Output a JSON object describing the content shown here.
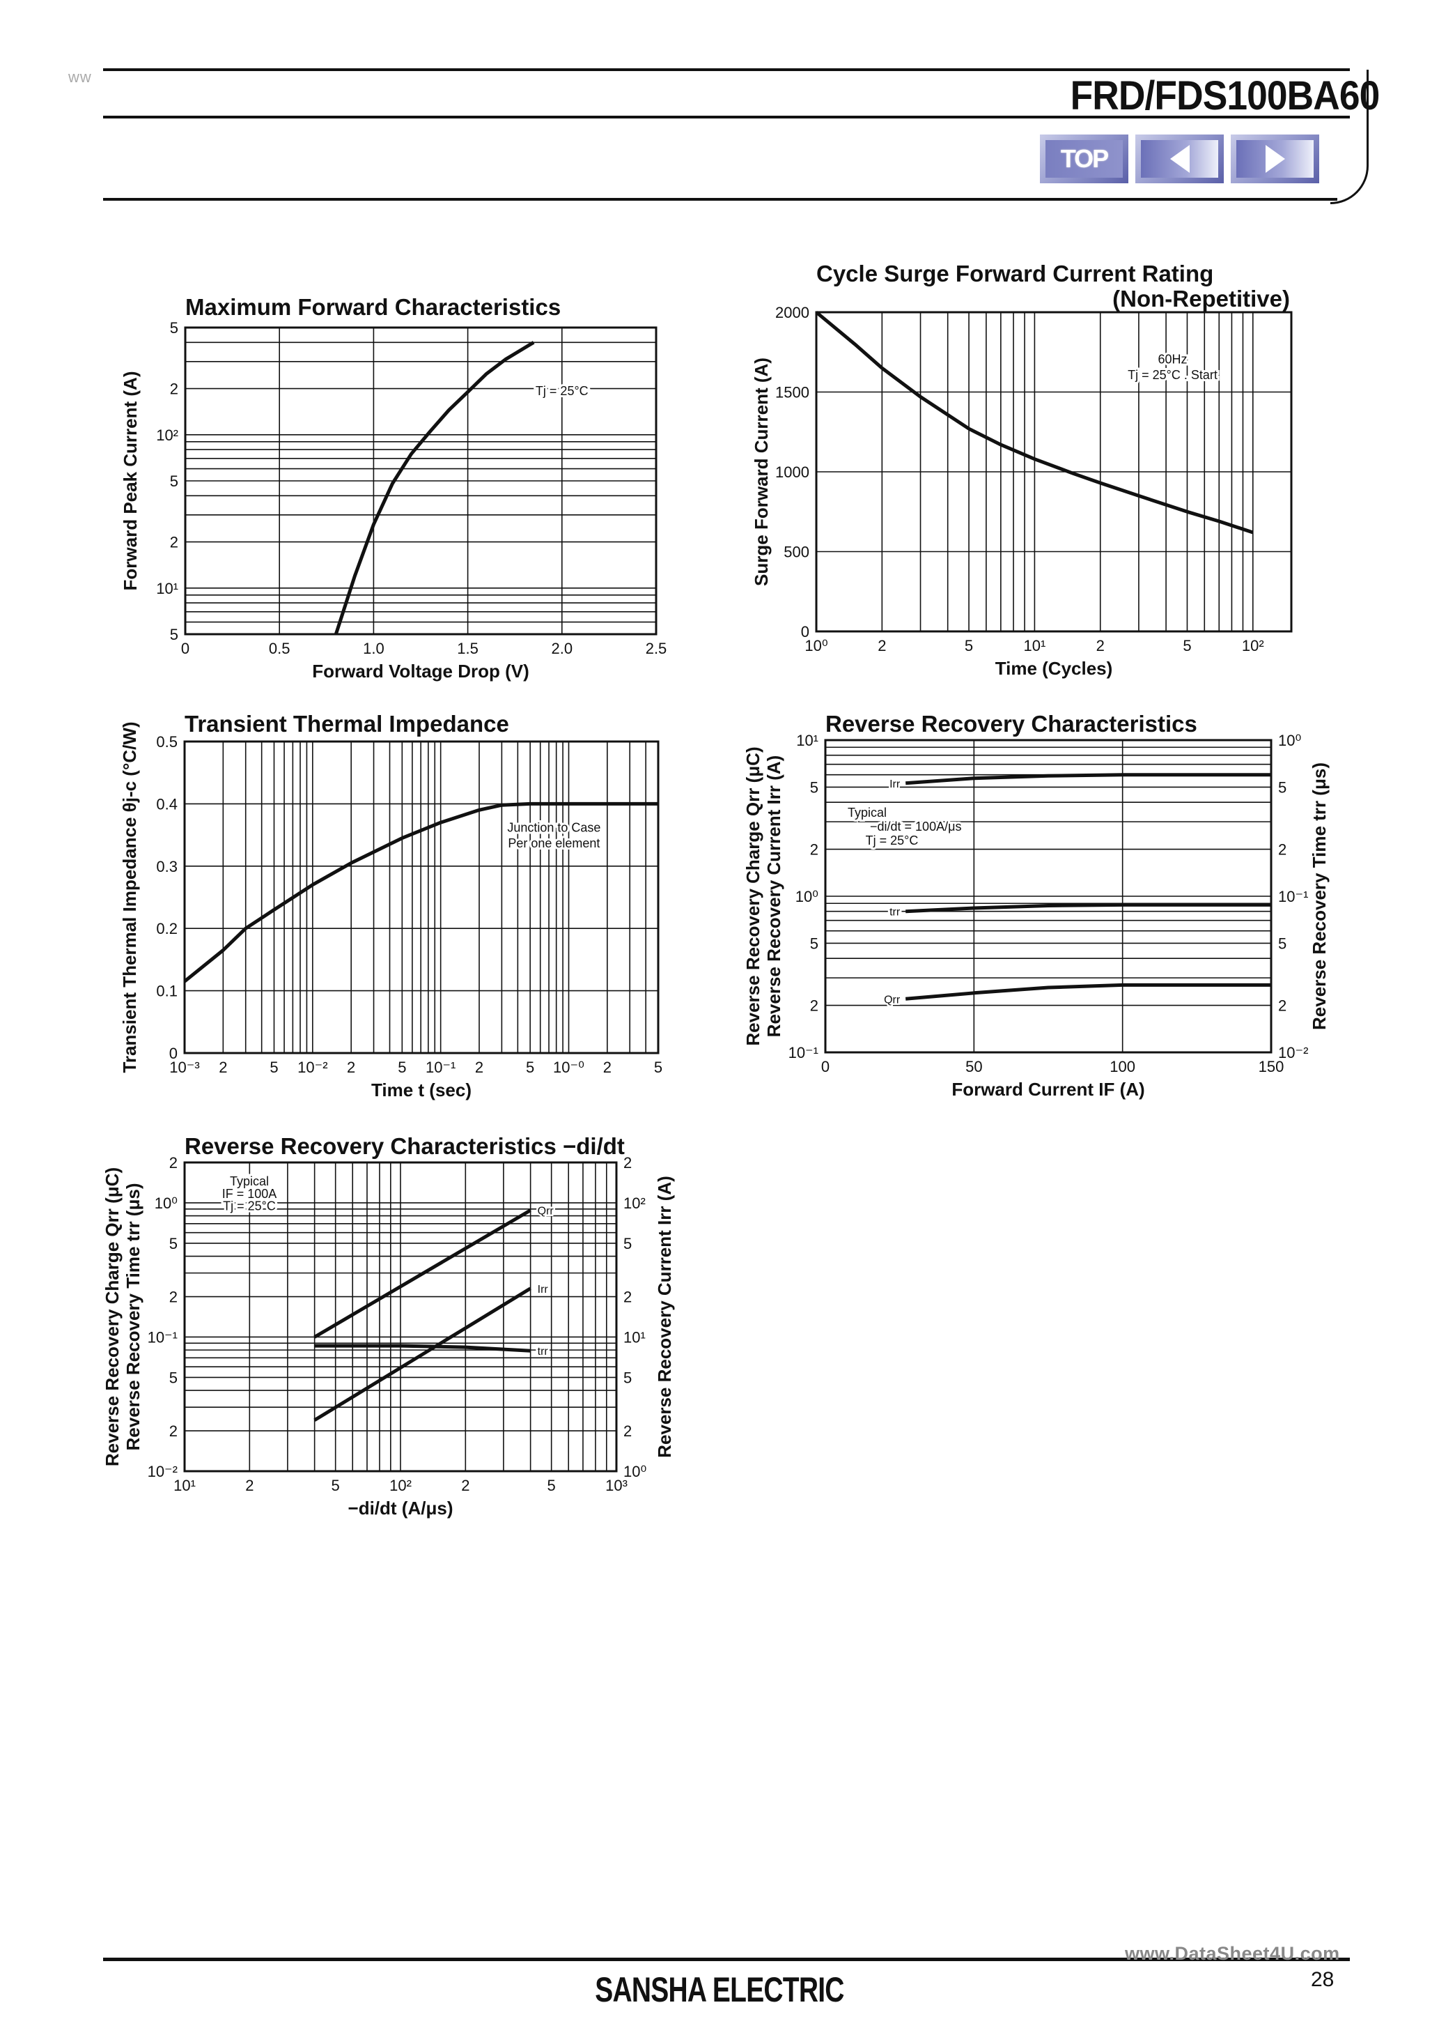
{
  "header": {
    "watermark_top": "ww",
    "part_number": "FRD/FDS100BA60",
    "nav": {
      "top_label": "TOP",
      "prev_label": "◀",
      "next_label": "▶"
    }
  },
  "footer": {
    "company": "SANSHA ELECTRIC",
    "page_number": "28",
    "watermark": "www.DataSheet4U.com"
  },
  "chart_data": [
    {
      "id": "max_forward",
      "type": "line",
      "title": "Maximum Forward Characteristics",
      "xlabel": "Forward Voltage Drop (V)",
      "ylabel": "Forward Peak Current (A)",
      "xscale": "linear",
      "yscale": "log",
      "xlim": [
        0,
        2.5
      ],
      "ylim": [
        5,
        500
      ],
      "xticks": [
        "0",
        "0.5",
        "1.0",
        "1.5",
        "2.0",
        "2.5"
      ],
      "yticks": [
        {
          "v": 5,
          "label": "5"
        },
        {
          "v": 10,
          "label": "10¹"
        },
        {
          "v": 20,
          "label": "2"
        },
        {
          "v": 50,
          "label": "5"
        },
        {
          "v": 100,
          "label": "10²"
        },
        {
          "v": 200,
          "label": "2"
        },
        {
          "v": 500,
          "label": "5"
        }
      ],
      "grid": true,
      "annotations": [
        "Tj = 25°C"
      ],
      "series": [
        {
          "name": "Tj=25C",
          "x": [
            0.8,
            0.9,
            1.0,
            1.1,
            1.2,
            1.3,
            1.4,
            1.5,
            1.6,
            1.7,
            1.85
          ],
          "y": [
            5,
            12,
            26,
            48,
            75,
            105,
            145,
            190,
            250,
            310,
            400
          ]
        }
      ]
    },
    {
      "id": "cycle_surge",
      "type": "line",
      "title": "Cycle Surge Forward Current Rating",
      "subtitle": "(Non-Repetitive)",
      "xlabel": "Time (Cycles)",
      "ylabel": "Surge Forward Current (A)",
      "xscale": "log",
      "yscale": "linear",
      "xlim": [
        1,
        150
      ],
      "ylim": [
        0,
        2000
      ],
      "xticks": [
        {
          "v": 1,
          "label": "10⁰"
        },
        {
          "v": 2,
          "label": "2"
        },
        {
          "v": 5,
          "label": "5"
        },
        {
          "v": 10,
          "label": "10¹"
        },
        {
          "v": 20,
          "label": "2"
        },
        {
          "v": 50,
          "label": "5"
        },
        {
          "v": 100,
          "label": "10²"
        }
      ],
      "yticks": [
        "0",
        "500",
        "1000",
        "1500",
        "2000"
      ],
      "grid": true,
      "annotations": [
        "60Hz",
        "Tj = 25°C . Start"
      ],
      "series": [
        {
          "name": "60Hz",
          "x": [
            1,
            1.5,
            2,
            3,
            5,
            7,
            10,
            15,
            20,
            30,
            50,
            70,
            100
          ],
          "y": [
            2000,
            1800,
            1650,
            1470,
            1270,
            1170,
            1080,
            990,
            930,
            850,
            750,
            690,
            620
          ]
        }
      ]
    },
    {
      "id": "transient_thermal",
      "type": "line",
      "title": "Transient Thermal Impedance",
      "xlabel": "Time t (sec)",
      "ylabel": "Transient Thermal Impedance θj-c (°C/W)",
      "xscale": "log",
      "yscale": "linear",
      "xlim": [
        0.001,
        5
      ],
      "ylim": [
        0,
        0.5
      ],
      "xticks": [
        {
          "v": 0.001,
          "label": "10⁻³"
        },
        {
          "v": 0.002,
          "label": "2"
        },
        {
          "v": 0.005,
          "label": "5"
        },
        {
          "v": 0.01,
          "label": "10⁻²"
        },
        {
          "v": 0.02,
          "label": "2"
        },
        {
          "v": 0.05,
          "label": "5"
        },
        {
          "v": 0.1,
          "label": "10⁻¹"
        },
        {
          "v": 0.2,
          "label": "2"
        },
        {
          "v": 0.5,
          "label": "5"
        },
        {
          "v": 1,
          "label": "10⁻⁰"
        },
        {
          "v": 2,
          "label": "2"
        },
        {
          "v": 5,
          "label": "5"
        }
      ],
      "yticks": [
        "0",
        "0.1",
        "0.2",
        "0.3",
        "0.4",
        "0.5"
      ],
      "grid": true,
      "annotations": [
        "Junction to Case",
        "Per one element"
      ],
      "series": [
        {
          "name": "Junction to Case",
          "x": [
            0.001,
            0.002,
            0.003,
            0.005,
            0.01,
            0.02,
            0.05,
            0.1,
            0.2,
            0.3,
            0.5,
            1,
            2,
            5
          ],
          "y": [
            0.115,
            0.165,
            0.2,
            0.23,
            0.27,
            0.305,
            0.345,
            0.37,
            0.39,
            0.398,
            0.4,
            0.4,
            0.4,
            0.4
          ]
        }
      ]
    },
    {
      "id": "reverse_recovery_if",
      "type": "line",
      "title": "Reverse Recovery Characteristics",
      "xlabel": "Forward Current IF (A)",
      "ylabel": "Reverse Recovery Charge Qrr (μC) / Reverse Recovery Current Irr (A)",
      "ylabel_right": "Reverse Recovery Time trr (μs)",
      "xscale": "linear",
      "yscale": "log",
      "xlim": [
        0,
        150
      ],
      "ylim": [
        0.1,
        10
      ],
      "ylim_right": [
        0.01,
        1
      ],
      "xticks": [
        "0",
        "50",
        "100",
        "150"
      ],
      "yticks": [
        {
          "v": 0.1,
          "label": "10⁻¹"
        },
        {
          "v": 0.2,
          "label": "2"
        },
        {
          "v": 0.5,
          "label": "5"
        },
        {
          "v": 1,
          "label": "10⁰"
        },
        {
          "v": 2,
          "label": "2"
        },
        {
          "v": 5,
          "label": "5"
        },
        {
          "v": 10,
          "label": "10¹"
        }
      ],
      "yticks_right": [
        "10⁻²",
        "2",
        "5",
        "10⁻¹",
        "2",
        "5",
        "10⁰"
      ],
      "grid": true,
      "annotations": [
        "Typical",
        "−di/dt = 100A/μs",
        "Tj = 25°C"
      ],
      "series": [
        {
          "name": "Irr",
          "x": [
            27,
            50,
            75,
            100,
            150
          ],
          "y": [
            5.3,
            5.7,
            5.9,
            6.0,
            6.0
          ]
        },
        {
          "name": "trr",
          "x": [
            27,
            50,
            75,
            100,
            150
          ],
          "y": [
            0.8,
            0.84,
            0.87,
            0.88,
            0.88
          ]
        },
        {
          "name": "Qrr",
          "x": [
            27,
            50,
            75,
            100,
            150
          ],
          "y": [
            0.22,
            0.24,
            0.26,
            0.27,
            0.27
          ]
        }
      ]
    },
    {
      "id": "reverse_recovery_didt",
      "type": "line",
      "title": "Reverse Recovery Characteristics −di/dt",
      "xlabel": "−di/dt (A/μs)",
      "ylabel": "Reverse Recovery Charge Qrr (μC) / Reverse Recovery Time trr (μs)",
      "ylabel_right": "Reverse Recovery Current Irr (A)",
      "xscale": "log",
      "yscale": "log",
      "xlim": [
        10,
        1000
      ],
      "ylim": [
        0.01,
        2
      ],
      "ylim_right": [
        1,
        200
      ],
      "xticks": [
        {
          "v": 10,
          "label": "10¹"
        },
        {
          "v": 20,
          "label": "2"
        },
        {
          "v": 50,
          "label": "5"
        },
        {
          "v": 100,
          "label": "10²"
        },
        {
          "v": 200,
          "label": "2"
        },
        {
          "v": 500,
          "label": "5"
        },
        {
          "v": 1000,
          "label": "10³"
        }
      ],
      "yticks": [
        {
          "v": 0.01,
          "label": "10⁻²"
        },
        {
          "v": 0.02,
          "label": "2"
        },
        {
          "v": 0.05,
          "label": "5"
        },
        {
          "v": 0.1,
          "label": "10⁻¹"
        },
        {
          "v": 0.2,
          "label": "2"
        },
        {
          "v": 0.5,
          "label": "5"
        },
        {
          "v": 1,
          "label": "10⁰"
        },
        {
          "v": 2,
          "label": "2"
        }
      ],
      "yticks_right": [
        "10⁰",
        "2",
        "5",
        "10¹",
        "2",
        "5",
        "10²",
        "2"
      ],
      "grid": true,
      "annotations": [
        "Typical",
        "IF = 100A",
        "Tj = 25°C"
      ],
      "series": [
        {
          "name": "Qrr",
          "x": [
            40,
            400
          ],
          "y": [
            0.1,
            0.88
          ]
        },
        {
          "name": "Irr",
          "x": [
            40,
            400
          ],
          "y": [
            0.024,
            0.23
          ]
        },
        {
          "name": "trr",
          "x": [
            40,
            100,
            200,
            400
          ],
          "y": [
            0.086,
            0.086,
            0.084,
            0.079
          ]
        }
      ]
    }
  ]
}
